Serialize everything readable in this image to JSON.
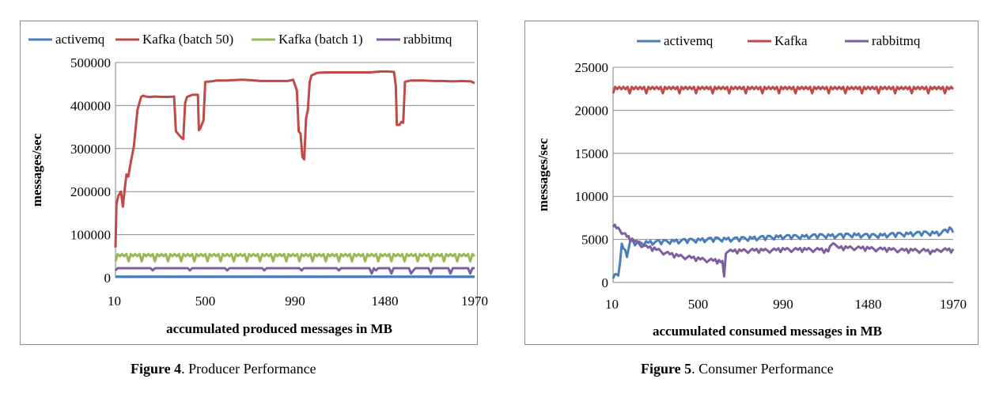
{
  "figures": [
    {
      "label": "Figure 4",
      "text": ". Producer Performance"
    },
    {
      "label": "Figure 5",
      "text": ". Consumer Performance"
    }
  ],
  "chart_data": [
    {
      "type": "line",
      "title": "",
      "xlabel": "accumulated produced messages in MB",
      "ylabel": "messages/sec",
      "x_ticks": [
        "10",
        "500",
        "990",
        "1480",
        "1970"
      ],
      "xlim": [
        10,
        1970
      ],
      "ylim": [
        0,
        500000
      ],
      "y_ticks": [
        "0",
        "100000",
        "200000",
        "300000",
        "400000",
        "500000"
      ],
      "grid": "horizontal",
      "legend_position": "top",
      "series": [
        {
          "name": "activemq",
          "color": "#4a7ebb",
          "x": [
            10,
            500,
            990,
            1480,
            1970
          ],
          "values": [
            2500,
            2500,
            2500,
            2500,
            2500
          ]
        },
        {
          "name": "Kafka (batch 50)",
          "color": "#be4b48",
          "x": [
            10,
            15,
            25,
            40,
            50,
            60,
            70,
            80,
            90,
            110,
            130,
            150,
            160,
            175,
            190,
            200,
            230,
            260,
            300,
            330,
            340,
            370,
            380,
            390,
            400,
            430,
            460,
            465,
            470,
            480,
            490,
            500,
            530,
            560,
            600,
            650,
            700,
            750,
            800,
            850,
            900,
            950,
            980,
            1000,
            1010,
            1020,
            1030,
            1040,
            1050,
            1060,
            1070,
            1080,
            1110,
            1150,
            1200,
            1250,
            1300,
            1350,
            1400,
            1450,
            1500,
            1530,
            1540,
            1545,
            1560,
            1570,
            1580,
            1590,
            1620,
            1700,
            1750,
            1800,
            1850,
            1900,
            1950,
            1970
          ],
          "values": [
            70000,
            170000,
            190000,
            200000,
            165000,
            205000,
            240000,
            235000,
            260000,
            305000,
            390000,
            420000,
            423000,
            421000,
            420000,
            420000,
            421000,
            420000,
            420000,
            421000,
            340000,
            325000,
            322000,
            405000,
            420000,
            425000,
            425000,
            343000,
            345000,
            355000,
            365000,
            455000,
            456000,
            458000,
            458000,
            459000,
            460000,
            459000,
            457000,
            457000,
            457000,
            457000,
            460000,
            435000,
            340000,
            335000,
            280000,
            275000,
            370000,
            390000,
            455000,
            470000,
            476000,
            477000,
            477000,
            477000,
            477000,
            477000,
            477000,
            479000,
            479000,
            478000,
            445000,
            355000,
            355000,
            362000,
            360000,
            455000,
            458000,
            458000,
            457000,
            457000,
            456000,
            457000,
            456000,
            452000
          ]
        },
        {
          "name": "Kafka (batch 1)",
          "color": "#98b954",
          "x": [
            10,
            500,
            990,
            1480,
            1970
          ],
          "values": [
            52000,
            52000,
            52000,
            52000,
            52000
          ]
        },
        {
          "name": "rabbitmq",
          "color": "#7d5fa0",
          "x": [
            10,
            500,
            990,
            1480,
            1970
          ],
          "values": [
            22000,
            22000,
            22000,
            22000,
            22000
          ]
        }
      ]
    },
    {
      "type": "line",
      "title": "",
      "xlabel": "accumulated consumed messages in MB",
      "ylabel": "messages/sec",
      "x_ticks": [
        "10",
        "500",
        "990",
        "1480",
        "1970"
      ],
      "xlim": [
        10,
        1970
      ],
      "ylim": [
        0,
        25000
      ],
      "y_ticks": [
        "0",
        "5000",
        "10000",
        "15000",
        "20000",
        "25000"
      ],
      "grid": "horizontal",
      "legend_position": "top",
      "series": [
        {
          "name": "activemq",
          "color": "#4a7ebb",
          "x": [
            10,
            40,
            60,
            90,
            110,
            150,
            200,
            300,
            400,
            500,
            600,
            700,
            800,
            900,
            1000,
            1100,
            1200,
            1300,
            1400,
            1500,
            1600,
            1700,
            1800,
            1900,
            1950,
            1970
          ],
          "values": [
            700,
            800,
            4300,
            3200,
            4700,
            4500,
            4600,
            4700,
            4800,
            4900,
            5000,
            5000,
            5100,
            5200,
            5300,
            5300,
            5400,
            5400,
            5500,
            5400,
            5500,
            5600,
            5700,
            5700,
            6200,
            5800
          ]
        },
        {
          "name": "Kafka",
          "color": "#be4b48",
          "x": [
            10,
            500,
            990,
            1480,
            1970
          ],
          "values": [
            22600,
            22600,
            22600,
            22600,
            22600
          ]
        },
        {
          "name": "rabbitmq",
          "color": "#7d5fa0",
          "x": [
            10,
            30,
            60,
            90,
            120,
            160,
            200,
            260,
            300,
            350,
            400,
            450,
            500,
            550,
            600,
            620,
            640,
            650,
            660,
            700,
            800,
            900,
            1000,
            1100,
            1200,
            1250,
            1280,
            1300,
            1400,
            1500,
            1600,
            1700,
            1800,
            1850,
            1900,
            1970
          ],
          "values": [
            6700,
            6300,
            5900,
            5300,
            4900,
            4500,
            4100,
            3800,
            3500,
            3200,
            3000,
            2900,
            2700,
            2600,
            2500,
            2400,
            2300,
            700,
            3600,
            3600,
            3700,
            3700,
            3800,
            3800,
            3800,
            3600,
            4800,
            4000,
            4000,
            3900,
            3800,
            3700,
            3700,
            3500,
            3800,
            3700
          ]
        }
      ]
    }
  ]
}
